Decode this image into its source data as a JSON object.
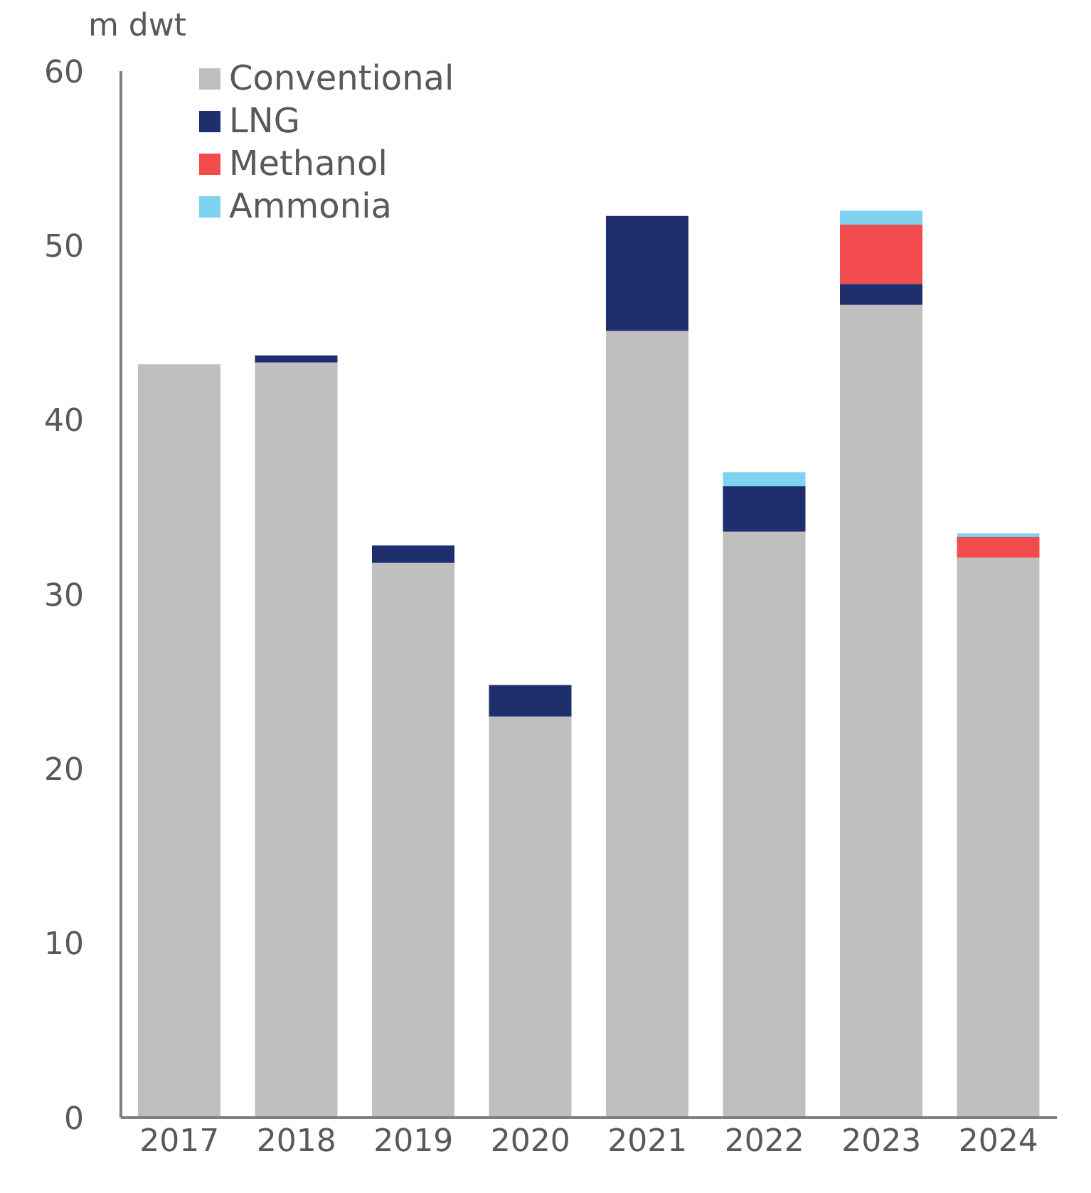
{
  "chart_data": {
    "type": "bar",
    "ylabel": "m dwt",
    "stacked": true,
    "categories": [
      "2017",
      "2018",
      "2019",
      "2020",
      "2021",
      "2022",
      "2023",
      "2024"
    ],
    "series": [
      {
        "name": "Conventional",
        "color": "#bfbfbf",
        "values": [
          43.2,
          43.3,
          31.8,
          23.0,
          45.1,
          33.6,
          46.6,
          32.1
        ]
      },
      {
        "name": "LNG",
        "color": "#1f2f6e",
        "values": [
          0,
          0.4,
          1.0,
          1.8,
          6.6,
          2.6,
          1.2,
          0
        ]
      },
      {
        "name": "Methanol",
        "color": "#f24b4e",
        "values": [
          0,
          0,
          0,
          0,
          0,
          0,
          3.4,
          1.2
        ]
      },
      {
        "name": "Ammonia",
        "color": "#7fd3f0",
        "values": [
          0,
          0,
          0,
          0,
          0,
          0.8,
          0.8,
          0.2
        ]
      }
    ],
    "ylim": [
      0,
      60
    ],
    "yticks": [
      0,
      10,
      20,
      30,
      40,
      50,
      60
    ],
    "grid": false,
    "legend": "top left"
  }
}
